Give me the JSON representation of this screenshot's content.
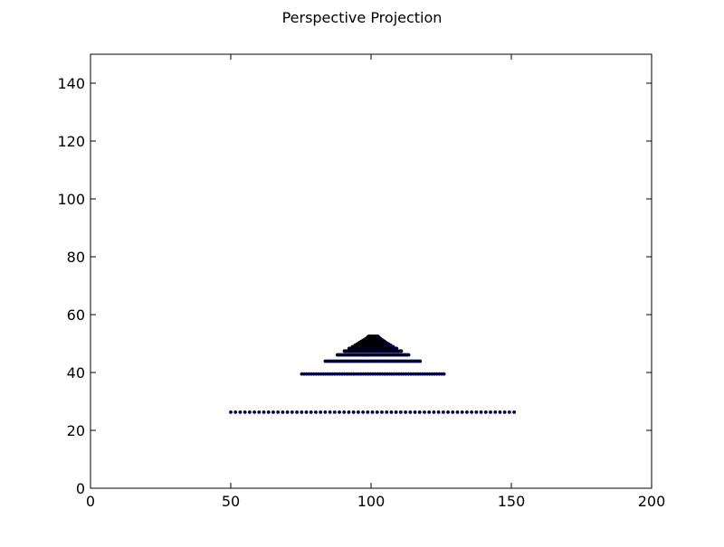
{
  "figure": {
    "title": "Perspective Projection"
  },
  "chart_data": {
    "type": "scatter",
    "title": "Perspective Projection",
    "xlabel": "",
    "ylabel": "",
    "xlim": [
      0,
      200
    ],
    "ylim": [
      0,
      150
    ],
    "xticks": [
      0,
      50,
      100,
      150,
      200
    ],
    "yticks": [
      0,
      20,
      40,
      60,
      80,
      100,
      120,
      140
    ],
    "grid": false,
    "marker_color": "#000080",
    "series": [
      {
        "rows": [
          {
            "y": 26.3,
            "x_start": 50.0,
            "x_end": 151.0,
            "count": 61
          },
          {
            "y": 39.5,
            "x_start": 75.3,
            "x_end": 126.0,
            "count": 61
          },
          {
            "y": 43.9,
            "x_start": 83.7,
            "x_end": 117.5,
            "count": 61
          },
          {
            "y": 46.1,
            "x_start": 88.0,
            "x_end": 113.4,
            "count": 61
          },
          {
            "y": 47.4,
            "x_start": 90.5,
            "x_end": 110.8,
            "count": 61
          },
          {
            "y": 48.3,
            "x_start": 92.2,
            "x_end": 109.1,
            "count": 61
          },
          {
            "y": 48.9,
            "x_start": 93.4,
            "x_end": 107.9,
            "count": 61
          },
          {
            "y": 49.4,
            "x_start": 94.3,
            "x_end": 107.0,
            "count": 61
          },
          {
            "y": 49.8,
            "x_start": 95.0,
            "x_end": 106.3,
            "count": 61
          },
          {
            "y": 50.1,
            "x_start": 95.6,
            "x_end": 105.7,
            "count": 61
          },
          {
            "y": 50.4,
            "x_start": 96.0,
            "x_end": 105.2,
            "count": 61
          },
          {
            "y": 50.6,
            "x_start": 96.4,
            "x_end": 104.9,
            "count": 61
          },
          {
            "y": 50.8,
            "x_start": 96.8,
            "x_end": 104.6,
            "count": 61
          },
          {
            "y": 51.0,
            "x_start": 97.1,
            "x_end": 104.3,
            "count": 61
          },
          {
            "y": 51.1,
            "x_start": 97.3,
            "x_end": 104.1,
            "count": 61
          },
          {
            "y": 51.3,
            "x_start": 97.6,
            "x_end": 103.9,
            "count": 61
          },
          {
            "y": 51.4,
            "x_start": 97.8,
            "x_end": 103.7,
            "count": 61
          },
          {
            "y": 51.5,
            "x_start": 98.0,
            "x_end": 103.5,
            "count": 61
          },
          {
            "y": 51.6,
            "x_start": 98.2,
            "x_end": 103.4,
            "count": 61
          },
          {
            "y": 51.7,
            "x_start": 98.3,
            "x_end": 103.2,
            "count": 61
          },
          {
            "y": 51.8,
            "x_start": 98.5,
            "x_end": 103.1,
            "count": 61
          },
          {
            "y": 51.9,
            "x_start": 98.6,
            "x_end": 103.0,
            "count": 61
          },
          {
            "y": 52.0,
            "x_start": 98.7,
            "x_end": 102.9,
            "count": 61
          },
          {
            "y": 52.1,
            "x_start": 98.8,
            "x_end": 102.8,
            "count": 61
          },
          {
            "y": 52.2,
            "x_start": 98.9,
            "x_end": 102.7,
            "count": 61
          },
          {
            "y": 52.3,
            "x_start": 99.0,
            "x_end": 102.6,
            "count": 61
          },
          {
            "y": 52.4,
            "x_start": 99.1,
            "x_end": 102.5,
            "count": 61
          },
          {
            "y": 52.5,
            "x_start": 99.2,
            "x_end": 102.4,
            "count": 61
          }
        ]
      }
    ]
  }
}
